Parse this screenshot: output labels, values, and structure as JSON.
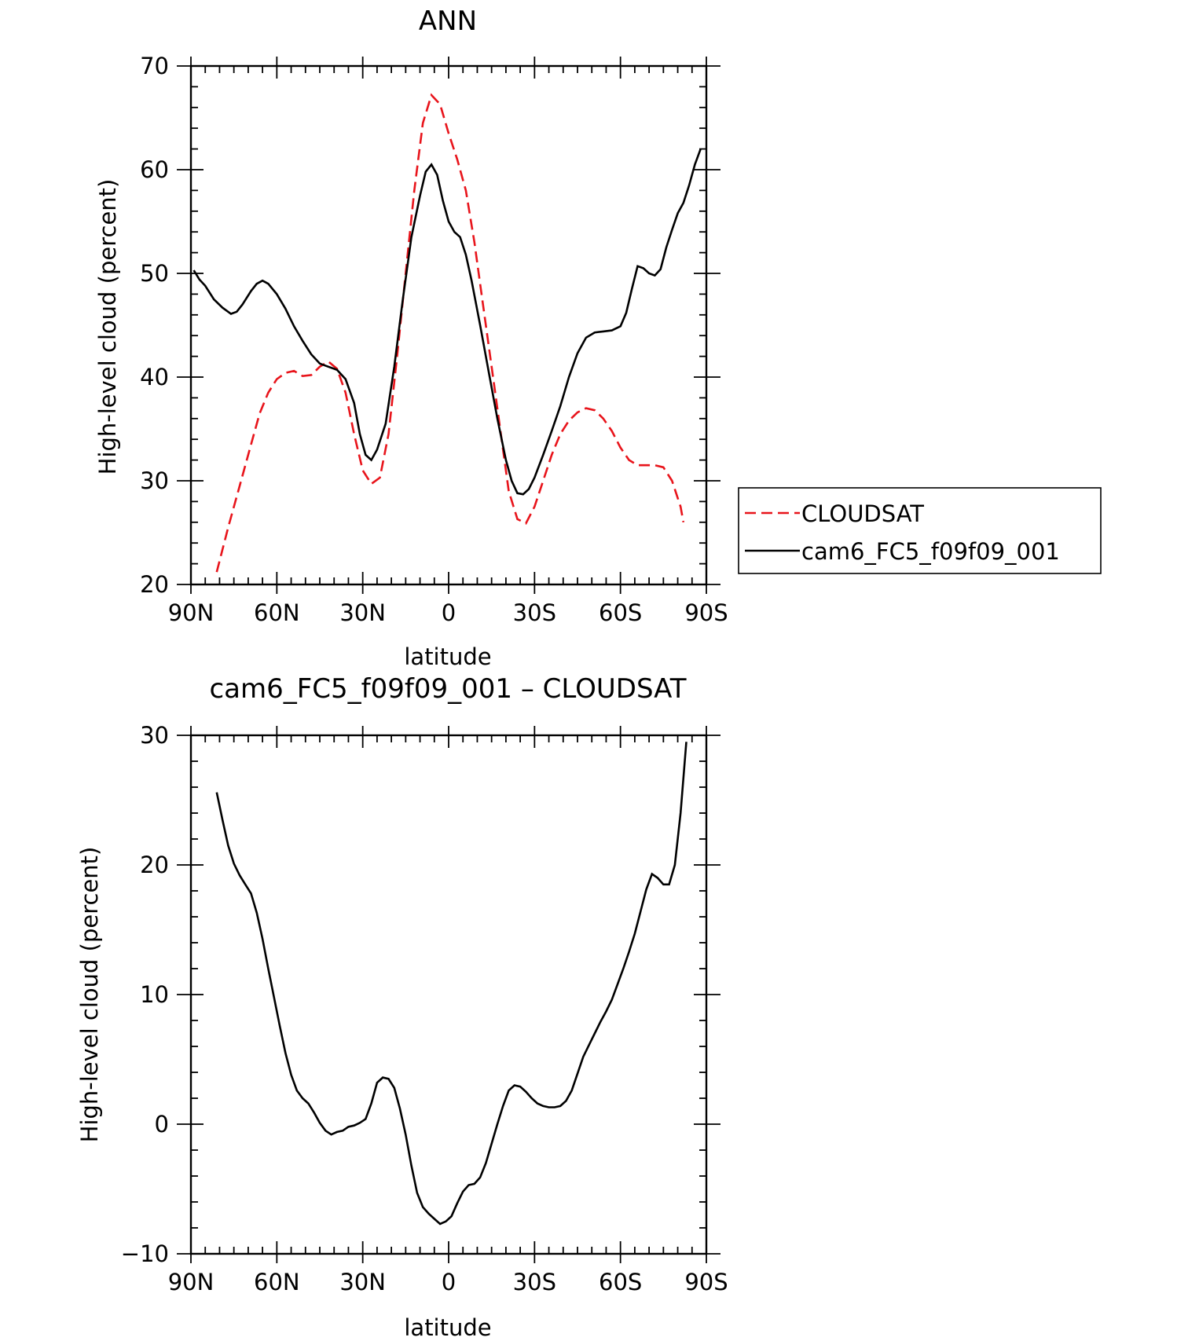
{
  "chart_data": [
    {
      "type": "line",
      "title": "ANN",
      "xlabel": "latitude",
      "ylabel": "High-level cloud (percent)",
      "xlim": [
        90,
        -90
      ],
      "ylim": [
        20,
        70
      ],
      "xticks": [
        90,
        60,
        30,
        0,
        -30,
        -60,
        -90
      ],
      "xtick_labels": [
        "90N",
        "60N",
        "30N",
        "0",
        "30S",
        "60S",
        "90S"
      ],
      "yticks": [
        20,
        30,
        40,
        50,
        60,
        70
      ],
      "ytick_labels": [
        "20",
        "30",
        "40",
        "50",
        "60",
        "70"
      ],
      "grid": false,
      "legend_position": "right",
      "series": [
        {
          "name": "CLOUDSAT",
          "color": "#e8141b",
          "dash": true,
          "points": [
            [
              81,
              21.2
            ],
            [
              77,
              25.5
            ],
            [
              73,
              29.5
            ],
            [
              69,
              33.5
            ],
            [
              66,
              36.5
            ],
            [
              63,
              38.5
            ],
            [
              60,
              39.8
            ],
            [
              57,
              40.4
            ],
            [
              54,
              40.6
            ],
            [
              51,
              40.1
            ],
            [
              48,
              40.2
            ],
            [
              45,
              41.0
            ],
            [
              42,
              41.5
            ],
            [
              39,
              40.8
            ],
            [
              36,
              38.5
            ],
            [
              33,
              34.5
            ],
            [
              30,
              31.0
            ],
            [
              27,
              29.7
            ],
            [
              24,
              30.3
            ],
            [
              21,
              34.5
            ],
            [
              18,
              42.0
            ],
            [
              15,
              50.0
            ],
            [
              12,
              58.0
            ],
            [
              9,
              64.5
            ],
            [
              6,
              67.2
            ],
            [
              3,
              66.3
            ],
            [
              0,
              63.5
            ],
            [
              -3,
              61.0
            ],
            [
              -6,
              58.0
            ],
            [
              -9,
              53.0
            ],
            [
              -12,
              47.0
            ],
            [
              -15,
              41.0
            ],
            [
              -18,
              35.0
            ],
            [
              -21,
              29.0
            ],
            [
              -24,
              26.3
            ],
            [
              -27,
              25.9
            ],
            [
              -30,
              27.5
            ],
            [
              -33,
              30.0
            ],
            [
              -36,
              32.5
            ],
            [
              -39,
              34.5
            ],
            [
              -42,
              35.8
            ],
            [
              -45,
              36.6
            ],
            [
              -48,
              37.0
            ],
            [
              -51,
              36.8
            ],
            [
              -54,
              36.0
            ],
            [
              -57,
              34.8
            ],
            [
              -60,
              33.2
            ],
            [
              -63,
              32.0
            ],
            [
              -66,
              31.5
            ],
            [
              -69,
              31.5
            ],
            [
              -72,
              31.5
            ],
            [
              -75,
              31.3
            ],
            [
              -78,
              30.0
            ],
            [
              -81,
              27.5
            ],
            [
              -82,
              26.0
            ]
          ]
        },
        {
          "name": "cam6_FC5_f09f09_001",
          "color": "#000000",
          "dash": false,
          "points": [
            [
              89,
              50.3
            ],
            [
              87,
              49.4
            ],
            [
              85,
              48.8
            ],
            [
              82,
              47.5
            ],
            [
              79,
              46.7
            ],
            [
              76,
              46.1
            ],
            [
              74,
              46.3
            ],
            [
              72,
              47.0
            ],
            [
              69,
              48.3
            ],
            [
              67,
              49.0
            ],
            [
              65,
              49.3
            ],
            [
              63,
              49.0
            ],
            [
              60,
              48.0
            ],
            [
              57,
              46.6
            ],
            [
              54,
              44.9
            ],
            [
              51,
              43.5
            ],
            [
              48,
              42.2
            ],
            [
              45,
              41.3
            ],
            [
              42,
              41.0
            ],
            [
              39,
              40.7
            ],
            [
              36,
              39.8
            ],
            [
              33,
              37.5
            ],
            [
              31,
              34.5
            ],
            [
              29,
              32.5
            ],
            [
              27,
              32.0
            ],
            [
              25,
              33.0
            ],
            [
              22,
              35.5
            ],
            [
              19,
              41.0
            ],
            [
              16,
              47.5
            ],
            [
              13,
              53.5
            ],
            [
              10,
              57.5
            ],
            [
              8,
              59.8
            ],
            [
              6,
              60.5
            ],
            [
              4,
              59.5
            ],
            [
              2,
              57.0
            ],
            [
              0,
              55.0
            ],
            [
              -2,
              54.0
            ],
            [
              -4,
              53.5
            ],
            [
              -6,
              51.8
            ],
            [
              -8,
              49.3
            ],
            [
              -11,
              45.0
            ],
            [
              -14,
              40.5
            ],
            [
              -17,
              36.0
            ],
            [
              -20,
              32.0
            ],
            [
              -22,
              30.0
            ],
            [
              -24,
              28.8
            ],
            [
              -26,
              28.7
            ],
            [
              -28,
              29.2
            ],
            [
              -30,
              30.3
            ],
            [
              -33,
              32.5
            ],
            [
              -36,
              34.8
            ],
            [
              -39,
              37.2
            ],
            [
              -42,
              40.0
            ],
            [
              -45,
              42.3
            ],
            [
              -48,
              43.8
            ],
            [
              -51,
              44.3
            ],
            [
              -54,
              44.4
            ],
            [
              -57,
              44.5
            ],
            [
              -60,
              44.9
            ],
            [
              -62,
              46.2
            ],
            [
              -64,
              48.5
            ],
            [
              -66,
              50.7
            ],
            [
              -68,
              50.5
            ],
            [
              -70,
              50.0
            ],
            [
              -72,
              49.8
            ],
            [
              -74,
              50.4
            ],
            [
              -76,
              52.5
            ],
            [
              -78,
              54.2
            ],
            [
              -80,
              55.8
            ],
            [
              -82,
              56.8
            ],
            [
              -84,
              58.5
            ],
            [
              -86,
              60.5
            ],
            [
              -88,
              62.0
            ]
          ]
        }
      ]
    },
    {
      "type": "line",
      "title": "cam6_FC5_f09f09_001 – CLOUDSAT",
      "xlabel": "latitude",
      "ylabel": "High-level cloud (percent)",
      "xlim": [
        90,
        -90
      ],
      "ylim": [
        -10,
        30
      ],
      "xticks": [
        90,
        60,
        30,
        0,
        -30,
        -60,
        -90
      ],
      "xtick_labels": [
        "90N",
        "60N",
        "30N",
        "0",
        "30S",
        "60S",
        "90S"
      ],
      "yticks": [
        -10,
        0,
        10,
        20,
        30
      ],
      "ytick_labels": [
        "−10",
        "0",
        "10",
        "20",
        "30"
      ],
      "grid": false,
      "legend_position": "none",
      "series": [
        {
          "color": "#000000",
          "dash": false,
          "points": [
            [
              81,
              25.6
            ],
            [
              79,
              23.5
            ],
            [
              77,
              21.5
            ],
            [
              75,
              20.1
            ],
            [
              73,
              19.2
            ],
            [
              71,
              18.5
            ],
            [
              69,
              17.8
            ],
            [
              67,
              16.3
            ],
            [
              65,
              14.3
            ],
            [
              63,
              12.0
            ],
            [
              61,
              9.8
            ],
            [
              59,
              7.6
            ],
            [
              57,
              5.5
            ],
            [
              55,
              3.8
            ],
            [
              53,
              2.6
            ],
            [
              51,
              2.0
            ],
            [
              49,
              1.6
            ],
            [
              47,
              0.9
            ],
            [
              45,
              0.1
            ],
            [
              43,
              -0.5
            ],
            [
              41,
              -0.8
            ],
            [
              39,
              -0.6
            ],
            [
              37,
              -0.5
            ],
            [
              35,
              -0.2
            ],
            [
              33,
              -0.1
            ],
            [
              31,
              0.1
            ],
            [
              29,
              0.4
            ],
            [
              27,
              1.6
            ],
            [
              25,
              3.2
            ],
            [
              23,
              3.6
            ],
            [
              21,
              3.5
            ],
            [
              19,
              2.8
            ],
            [
              17,
              1.2
            ],
            [
              15,
              -0.8
            ],
            [
              13,
              -3.2
            ],
            [
              11,
              -5.3
            ],
            [
              9,
              -6.4
            ],
            [
              7,
              -6.9
            ],
            [
              5,
              -7.3
            ],
            [
              3,
              -7.7
            ],
            [
              1,
              -7.5
            ],
            [
              -1,
              -7.1
            ],
            [
              -3,
              -6.1
            ],
            [
              -5,
              -5.2
            ],
            [
              -7,
              -4.7
            ],
            [
              -9,
              -4.6
            ],
            [
              -11,
              -4.1
            ],
            [
              -13,
              -3.0
            ],
            [
              -15,
              -1.5
            ],
            [
              -17,
              0.0
            ],
            [
              -19,
              1.4
            ],
            [
              -21,
              2.6
            ],
            [
              -23,
              3.0
            ],
            [
              -25,
              2.9
            ],
            [
              -27,
              2.5
            ],
            [
              -29,
              2.0
            ],
            [
              -31,
              1.6
            ],
            [
              -33,
              1.4
            ],
            [
              -35,
              1.3
            ],
            [
              -37,
              1.3
            ],
            [
              -39,
              1.4
            ],
            [
              -41,
              1.8
            ],
            [
              -43,
              2.6
            ],
            [
              -45,
              3.9
            ],
            [
              -47,
              5.2
            ],
            [
              -49,
              6.1
            ],
            [
              -51,
              7.0
            ],
            [
              -53,
              7.9
            ],
            [
              -55,
              8.7
            ],
            [
              -57,
              9.6
            ],
            [
              -59,
              10.8
            ],
            [
              -61,
              12.0
            ],
            [
              -63,
              13.3
            ],
            [
              -65,
              14.7
            ],
            [
              -67,
              16.4
            ],
            [
              -69,
              18.1
            ],
            [
              -71,
              19.3
            ],
            [
              -73,
              19.0
            ],
            [
              -75,
              18.5
            ],
            [
              -77,
              18.5
            ],
            [
              -79,
              20.0
            ],
            [
              -81,
              24.0
            ],
            [
              -83,
              29.5
            ]
          ]
        }
      ]
    }
  ]
}
